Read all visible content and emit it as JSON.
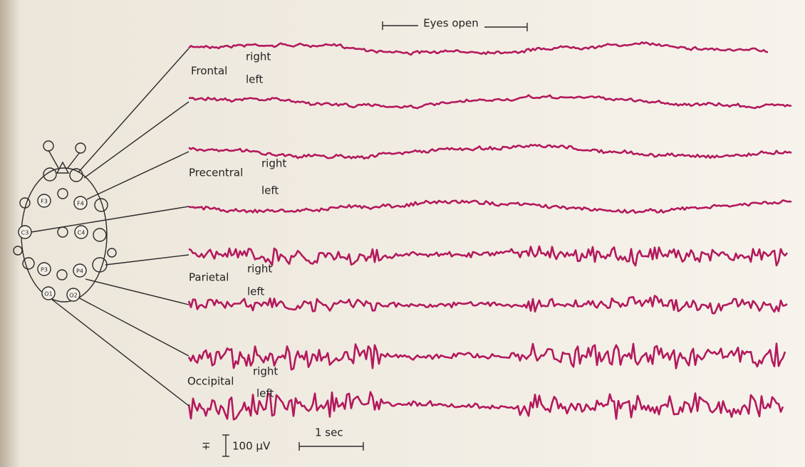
{
  "header": {
    "eyes_open": "Eyes open"
  },
  "regions": [
    {
      "name": "Frontal",
      "right": "right",
      "left": "left"
    },
    {
      "name": "Precentral",
      "right": "right",
      "left": "left"
    },
    {
      "name": "Parietal",
      "right": "right",
      "left": "left"
    },
    {
      "name": "Occipital",
      "right": "right",
      "left": "left"
    }
  ],
  "electrodes": [
    "F3",
    "F4",
    "C3",
    "C4",
    "P3",
    "P4",
    "O1",
    "O2"
  ],
  "scale": {
    "amplitude_sign": "∓",
    "amplitude": "100 μV",
    "time": "1 sec"
  }
}
